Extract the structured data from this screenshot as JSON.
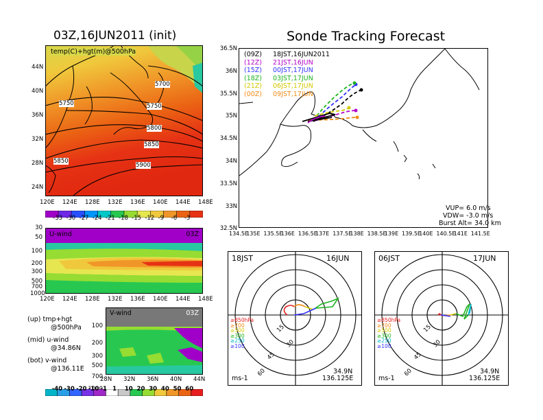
{
  "left_title": "03Z,16JUN2011 (init)",
  "right_title": "Sonde Tracking Forecast",
  "top_map": {
    "label": "temp(C)+hgt(m)@500hPa",
    "lat_ticks": [
      "44N",
      "40N",
      "36N",
      "32N",
      "28N",
      "24N"
    ],
    "lon_ticks": [
      "120E",
      "124E",
      "128E",
      "132E",
      "136E",
      "140E",
      "144E",
      "148E"
    ],
    "contours": [
      "5700",
      "5750",
      "5750",
      "5800",
      "5850",
      "5850",
      "5900"
    ],
    "colorbar_ticks": [
      "-33",
      "-30",
      "-27",
      "-24",
      "-21",
      "-18",
      "-15",
      "-12",
      "-9",
      "-6",
      "-3"
    ],
    "colors": [
      "#a000c8",
      "#6e28e6",
      "#2850ff",
      "#0096ff",
      "#00c8c8",
      "#28c850",
      "#96dc32",
      "#e6e650",
      "#f0c83c",
      "#f09628",
      "#eb6414",
      "#e63214"
    ]
  },
  "uwind": {
    "label": "U-wind",
    "time": "03Z",
    "p_ticks": [
      "30",
      "50",
      "100",
      "200",
      "300",
      "500",
      "700",
      "1000"
    ],
    "lon_ticks": [
      "120E",
      "124E",
      "128E",
      "132E",
      "136E",
      "140E",
      "144E",
      "148E"
    ]
  },
  "vwind": {
    "label": "V-wind",
    "time": "03Z",
    "p_ticks": [
      "100",
      "200",
      "300",
      "500",
      "700",
      "1000"
    ],
    "lat_ticks": [
      "28N",
      "32N",
      "36N",
      "40N",
      "44N"
    ]
  },
  "wind_colorbar_ticks": [
    "-40",
    "-30",
    "-20",
    "-10",
    "-1",
    "1",
    "10",
    "20",
    "30",
    "40",
    "50",
    "60"
  ],
  "legend_notes": [
    {
      "a": "(up) tmp+hgt",
      "b": "@500hPa"
    },
    {
      "a": "(mid) u-wind",
      "b": "@34.86N"
    },
    {
      "a": "(bot) v-wind",
      "b": "@136.11E"
    }
  ],
  "track_map": {
    "lat_ticks": [
      "36.5N",
      "36N",
      "35.5N",
      "35N",
      "34.5N",
      "34N",
      "33.5N",
      "33N",
      "32.5N"
    ],
    "lon_ticks": [
      "134.5E",
      "135E",
      "135.5E",
      "136E",
      "136.5E",
      "137E",
      "137.5E",
      "138E",
      "138.5E",
      "139E",
      "139.5E",
      "140E",
      "140.5E",
      "141E",
      "141.5E"
    ],
    "runs": [
      {
        "code": "(09Z)",
        "time": "18JST,16JUN2011",
        "color": "#000000"
      },
      {
        "code": "(12Z)",
        "time": "21JST,16JUN",
        "color": "#b400c8"
      },
      {
        "code": "(15Z)",
        "time": "00JST,17JUN",
        "color": "#3232ff"
      },
      {
        "code": "(18Z)",
        "time": "03JST,17JUN",
        "color": "#1eb41e"
      },
      {
        "code": "(21Z)",
        "time": "06JST,17JUN",
        "color": "#d2c800"
      },
      {
        "code": "(00Z)",
        "time": "09JST,17JUN",
        "color": "#f08c14"
      }
    ],
    "vup": "VUP= 6.0 m/s",
    "vdw": "VDW= -3.0 m/s",
    "burst": "Burst Alt= 34.0 km"
  },
  "hodo1": {
    "left": "18JST",
    "right": "16JUN",
    "lat": "34.9N",
    "lon": "136.125E",
    "unit": "ms-1"
  },
  "hodo2": {
    "left": "06JST",
    "right": "17JUN",
    "lat": "34.9N",
    "lon": "136.125E",
    "unit": "ms-1"
  },
  "hodo_rings": [
    "15",
    "30",
    "45",
    "60"
  ],
  "hodo_levels": [
    {
      "text": "≥850hPa",
      "color": "#e61e1e"
    },
    {
      "text": "≥700",
      "color": "#f08c14"
    },
    {
      "text": "≥500",
      "color": "#d2c800"
    },
    {
      "text": "≥300",
      "color": "#1eb41e"
    },
    {
      "text": "≥250",
      "color": "#00b4c8"
    },
    {
      "text": "≥100",
      "color": "#3232ff"
    }
  ]
}
